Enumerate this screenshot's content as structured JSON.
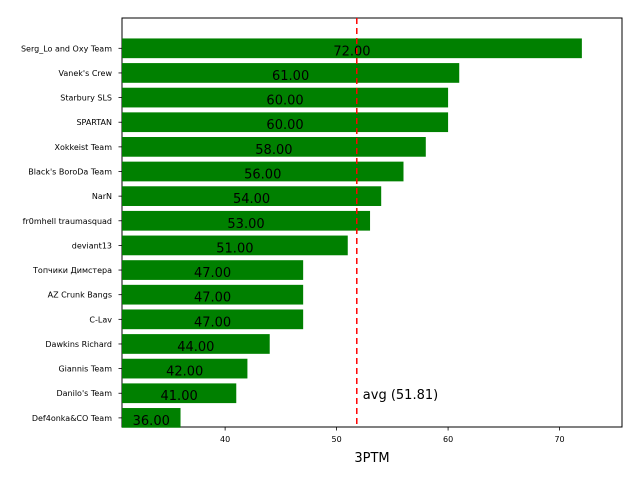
{
  "chart_data": {
    "type": "bar",
    "orientation": "horizontal",
    "categories": [
      "Serg_Lo and Oxy Team",
      "Vanek's Crew",
      "Starbury SLS",
      "SPARTAN",
      "Xokkeist Team",
      "Black's BoroDa Team",
      "NarN",
      "fr0mhell traumasquad",
      "deviant13",
      "Топчики Димстера",
      "AZ Crunk Bangs",
      "C-Lav",
      "Dawkins Richard",
      "Giannis Team",
      "Danilo's Team",
      "Def4onka&CO Team"
    ],
    "values": [
      72,
      61,
      60,
      60,
      58,
      56,
      54,
      53,
      51,
      47,
      47,
      47,
      44,
      42,
      41,
      36
    ],
    "value_labels": [
      "72.00",
      "61.00",
      "60.00",
      "60.00",
      "58.00",
      "56.00",
      "54.00",
      "53.00",
      "51.00",
      "47.00",
      "47.00",
      "47.00",
      "44.00",
      "42.00",
      "41.00",
      "36.00"
    ],
    "xlabel": "3PTM",
    "ylabel": "",
    "xlim": [
      30.75,
      75.6
    ],
    "xticks": [
      40,
      50,
      60,
      70
    ],
    "average": 51.81,
    "average_label": "avg (51.81)",
    "bar_color": "#008000",
    "avg_line_color": "#ff0000",
    "grid": false
  }
}
